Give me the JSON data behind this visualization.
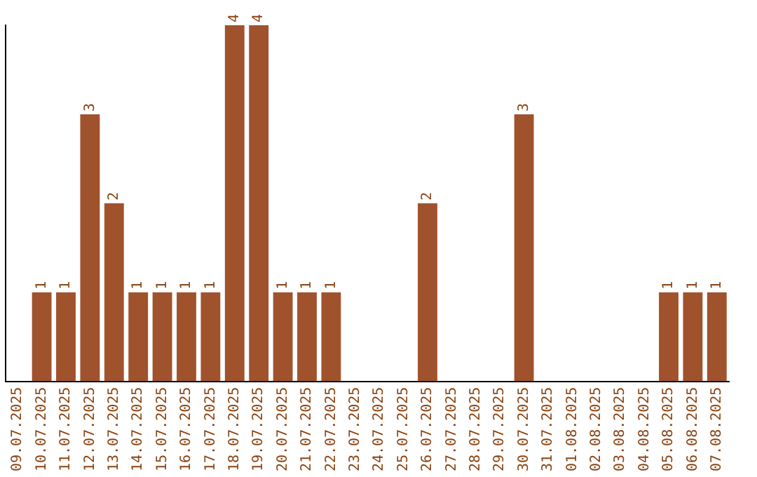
{
  "chart_data": {
    "type": "bar",
    "categories": [
      "09.07.2025",
      "10.07.2025",
      "11.07.2025",
      "12.07.2025",
      "13.07.2025",
      "14.07.2025",
      "15.07.2025",
      "16.07.2025",
      "17.07.2025",
      "18.07.2025",
      "19.07.2025",
      "20.07.2025",
      "21.07.2025",
      "22.07.2025",
      "23.07.2025",
      "24.07.2025",
      "25.07.2025",
      "26.07.2025",
      "27.07.2025",
      "28.07.2025",
      "29.07.2025",
      "30.07.2025",
      "31.07.2025",
      "01.08.2025",
      "02.08.2025",
      "03.08.2025",
      "04.08.2025",
      "05.08.2025",
      "06.08.2025",
      "07.08.2025"
    ],
    "values": [
      0,
      1,
      1,
      3,
      2,
      1,
      1,
      1,
      1,
      4,
      4,
      1,
      1,
      1,
      0,
      0,
      0,
      2,
      0,
      0,
      0,
      3,
      0,
      0,
      0,
      0,
      0,
      1,
      1,
      1
    ],
    "value_labels": [
      null,
      "1",
      "1",
      "3",
      "2",
      "1",
      "1",
      "1",
      "1",
      "4",
      "4",
      "1",
      "1",
      "1",
      null,
      null,
      null,
      "2",
      null,
      null,
      null,
      "3",
      null,
      null,
      null,
      null,
      null,
      "1",
      "1",
      "1"
    ],
    "color": "#a0522d",
    "grid": false,
    "legend": false,
    "tick_labels": "x"
  }
}
